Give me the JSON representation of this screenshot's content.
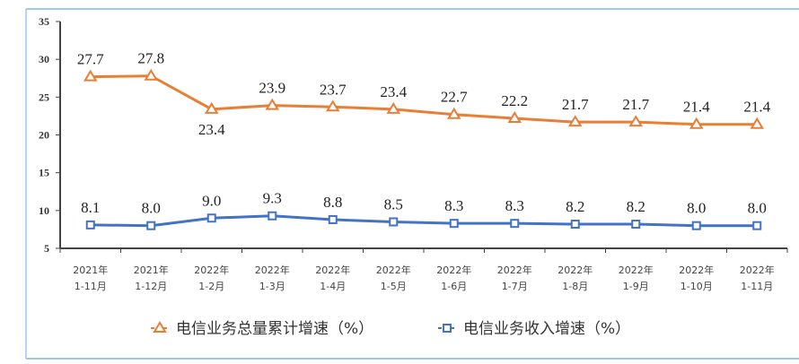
{
  "chart_data": {
    "type": "line",
    "categories": [
      [
        "2021年",
        "1-11月"
      ],
      [
        "2021年",
        "1-12月"
      ],
      [
        "2022年",
        "1-2月"
      ],
      [
        "2022年",
        "1-3月"
      ],
      [
        "2022年",
        "1-4月"
      ],
      [
        "2022年",
        "1-5月"
      ],
      [
        "2022年",
        "1-6月"
      ],
      [
        "2022年",
        "1-7月"
      ],
      [
        "2022年",
        "1-8月"
      ],
      [
        "2022年",
        "1-9月"
      ],
      [
        "2022年",
        "1-10月"
      ],
      [
        "2022年",
        "1-11月"
      ]
    ],
    "series": [
      {
        "name": "电信业务总量累计增速（%）",
        "marker": "triangle",
        "color": "#E97E35",
        "values": [
          27.7,
          27.8,
          23.4,
          23.9,
          23.7,
          23.4,
          22.7,
          22.2,
          21.7,
          21.7,
          21.4,
          21.4
        ]
      },
      {
        "name": "电信业务收入增速（%）",
        "marker": "square",
        "color": "#4472C4",
        "values": [
          8.1,
          8.0,
          9.0,
          9.3,
          8.8,
          8.5,
          8.3,
          8.3,
          8.2,
          8.2,
          8.0,
          8.0
        ]
      }
    ],
    "ylim": [
      5,
      35
    ],
    "yticks": [
      5,
      10,
      15,
      20,
      25,
      30,
      35
    ],
    "grid": false,
    "legend": "bottom",
    "frame_color": "#9DC8F0"
  }
}
